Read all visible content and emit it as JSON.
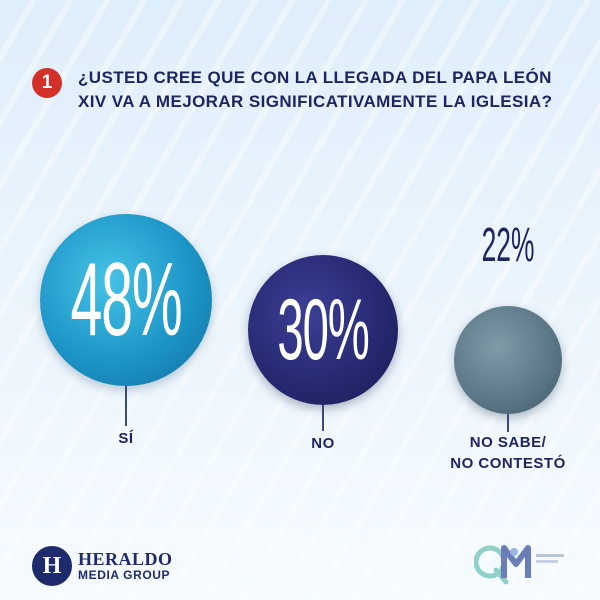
{
  "question": {
    "number": "1",
    "text": "¿USTED CREE QUE CON LA LLEGADA DEL PAPA LEÓN XIV VA A MEJORAR SIGNIFICATIVAMENTE LA IGLESIA?"
  },
  "chart_data": {
    "type": "bubble",
    "categories": [
      "SÍ",
      "NO",
      "NO SABE/ NO CONTESTÓ"
    ],
    "values": [
      48,
      30,
      22
    ],
    "value_labels": [
      "48%",
      "30%",
      "22%"
    ],
    "colors": [
      "#1d95c7",
      "#25286f",
      "#5b7686"
    ]
  },
  "labels": {
    "si": "SÍ",
    "no": "NO",
    "ns_line1": "NO SABE/",
    "ns_line2": "NO CONTESTÓ"
  },
  "footer": {
    "brand_badge": "H",
    "brand_top": "HERALDO",
    "brand_bottom": "MEDIA GROUP"
  },
  "colors": {
    "accent_red": "#d4302a",
    "navy_text": "#1d2660"
  }
}
